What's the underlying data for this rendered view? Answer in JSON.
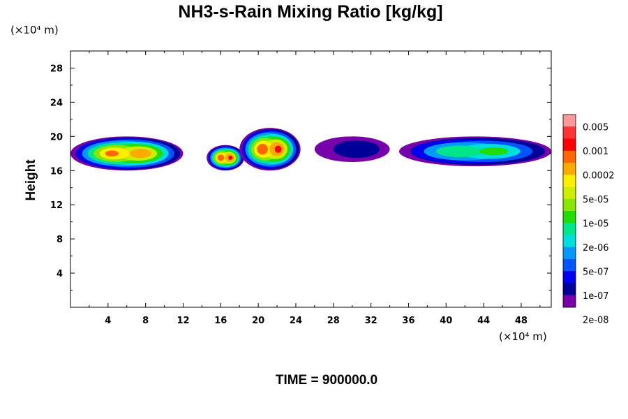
{
  "chart_data": {
    "type": "heatmap",
    "title": "NH3-s-Rain Mixing Ratio [kg/kg]",
    "ylabel": "Height",
    "y_unit_label": "(×10⁴ m)",
    "x_unit_label": "(×10⁴ m)",
    "xlim": [
      0,
      51.2
    ],
    "ylim": [
      0,
      30
    ],
    "x_ticks": [
      "4",
      "8",
      "12",
      "16",
      "20",
      "24",
      "28",
      "32",
      "36",
      "40",
      "44",
      "48"
    ],
    "y_ticks": [
      "4",
      "8",
      "12",
      "16",
      "20",
      "24",
      "28"
    ],
    "legend": {
      "placement": "right",
      "labels": [
        "0.005",
        "0.001",
        "0.0002",
        "5e-05",
        "1e-05",
        "2e-06",
        "5e-07",
        "1e-07",
        "2e-08"
      ],
      "colors": [
        "#ff9999",
        "#ff3333",
        "#ff0000",
        "#ff6600",
        "#ffaa00",
        "#ffee00",
        "#ccee00",
        "#88e600",
        "#22dd00",
        "#00e688",
        "#00dddd",
        "#0099ff",
        "#0055ff",
        "#0000ee",
        "#000099",
        "#7700aa"
      ]
    },
    "series": [
      {
        "x": [
          0,
          12
        ],
        "y": [
          16,
          20
        ],
        "peak_level": 13
      },
      {
        "x": [
          14.5,
          18.5
        ],
        "y": [
          16,
          19
        ],
        "peak_level": 14
      },
      {
        "x": [
          18,
          24.5
        ],
        "y": [
          16,
          21
        ],
        "peak_level": 14
      },
      {
        "x": [
          26,
          34
        ],
        "y": [
          17,
          20
        ],
        "peak_level": 2
      },
      {
        "x": [
          35,
          51.2
        ],
        "y": [
          16.5,
          20
        ],
        "peak_level": 8
      }
    ]
  },
  "footer": {
    "time_label": "TIME = 900000.0"
  }
}
